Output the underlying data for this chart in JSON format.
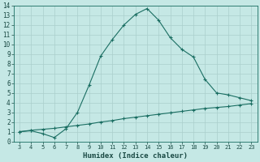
{
  "xlabel": "Humidex (Indice chaleur)",
  "background_color": "#c5e8e5",
  "grid_color": "#aacfcc",
  "line_color": "#1a6e62",
  "xmin": 3,
  "xmax": 23,
  "ymin": 0,
  "ymax": 14,
  "line1_x": [
    3,
    4,
    5,
    6,
    7,
    8,
    9,
    10,
    11,
    12,
    13,
    14,
    15,
    16,
    17,
    18,
    19,
    20,
    21,
    22,
    23
  ],
  "line1_y": [
    1.0,
    1.1,
    0.8,
    0.4,
    1.3,
    3.0,
    5.8,
    8.8,
    10.5,
    12.0,
    13.1,
    13.7,
    12.5,
    10.7,
    9.5,
    8.7,
    6.4,
    5.0,
    4.8,
    4.5,
    4.2
  ],
  "line2_x": [
    3,
    4,
    5,
    6,
    7,
    8,
    9,
    10,
    11,
    12,
    13,
    14,
    15,
    16,
    17,
    18,
    19,
    20,
    21,
    22,
    23
  ],
  "line2_y": [
    1.0,
    1.15,
    1.25,
    1.35,
    1.5,
    1.65,
    1.8,
    2.0,
    2.15,
    2.35,
    2.5,
    2.65,
    2.8,
    2.95,
    3.1,
    3.25,
    3.4,
    3.5,
    3.6,
    3.75,
    3.9
  ],
  "xlabel_fontsize": 6.5,
  "ytick_fontsize": 5.5,
  "xtick_fontsize": 5.0,
  "marker_size": 2.5,
  "linewidth": 0.8
}
